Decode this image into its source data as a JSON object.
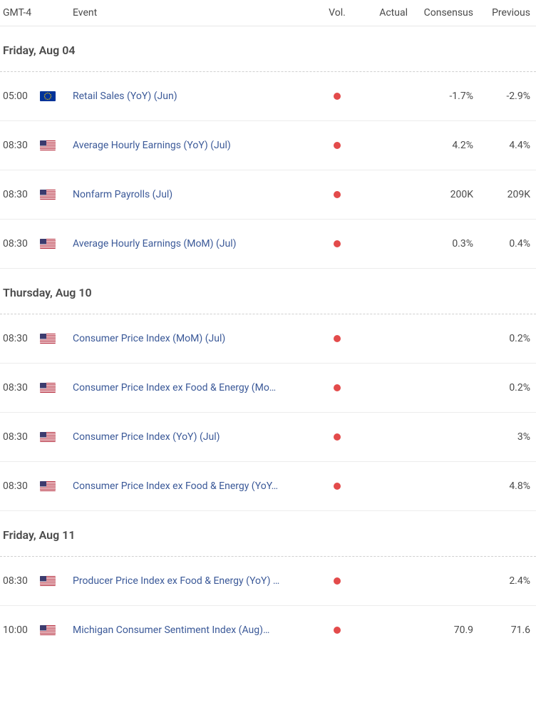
{
  "columns": {
    "time": "GMT-4",
    "event": "Event",
    "vol": "Vol.",
    "actual": "Actual",
    "consensus": "Consensus",
    "previous": "Previous"
  },
  "colors": {
    "link": "#3b5998",
    "vol_high": "#e34b4b",
    "text": "#4a4a4a",
    "border": "#ececec",
    "dashed_border": "#d0d0d0"
  },
  "flags": {
    "eu": {
      "type": "eu",
      "bg": "#003399",
      "star": "#ffcc00"
    },
    "us": {
      "type": "us",
      "stripe_red": "#b22234",
      "stripe_white": "#ffffff",
      "canton": "#3c3b6e"
    }
  },
  "sections": [
    {
      "date": "Friday, Aug 04",
      "rows": [
        {
          "time": "05:00",
          "flag": "eu",
          "event": "Retail Sales (YoY) (Jun)",
          "vol": "high",
          "actual": "",
          "consensus": "-1.7%",
          "previous": "-2.9%"
        },
        {
          "time": "08:30",
          "flag": "us",
          "event": "Average Hourly Earnings (YoY) (Jul)",
          "vol": "high",
          "actual": "",
          "consensus": "4.2%",
          "previous": "4.4%"
        },
        {
          "time": "08:30",
          "flag": "us",
          "event": "Nonfarm Payrolls (Jul)",
          "vol": "high",
          "actual": "",
          "consensus": "200K",
          "previous": "209K"
        },
        {
          "time": "08:30",
          "flag": "us",
          "event": "Average Hourly Earnings (MoM) (Jul)",
          "vol": "high",
          "actual": "",
          "consensus": "0.3%",
          "previous": "0.4%"
        }
      ]
    },
    {
      "date": "Thursday, Aug 10",
      "rows": [
        {
          "time": "08:30",
          "flag": "us",
          "event": "Consumer Price Index (MoM) (Jul)",
          "vol": "high",
          "actual": "",
          "consensus": "",
          "previous": "0.2%"
        },
        {
          "time": "08:30",
          "flag": "us",
          "event": "Consumer Price Index ex Food & Energy (Mo…",
          "vol": "high",
          "actual": "",
          "consensus": "",
          "previous": "0.2%"
        },
        {
          "time": "08:30",
          "flag": "us",
          "event": "Consumer Price Index (YoY) (Jul)",
          "vol": "high",
          "actual": "",
          "consensus": "",
          "previous": "3%"
        },
        {
          "time": "08:30",
          "flag": "us",
          "event": "Consumer Price Index ex Food & Energy (YoY…",
          "vol": "high",
          "actual": "",
          "consensus": "",
          "previous": "4.8%"
        }
      ]
    },
    {
      "date": "Friday, Aug 11",
      "rows": [
        {
          "time": "08:30",
          "flag": "us",
          "event": "Producer Price Index ex Food & Energy (YoY) …",
          "vol": "high",
          "actual": "",
          "consensus": "",
          "previous": "2.4%"
        },
        {
          "time": "10:00",
          "flag": "us",
          "event": "Michigan Consumer Sentiment Index (Aug)…",
          "vol": "high",
          "actual": "",
          "consensus": "70.9",
          "previous": "71.6"
        }
      ]
    }
  ]
}
